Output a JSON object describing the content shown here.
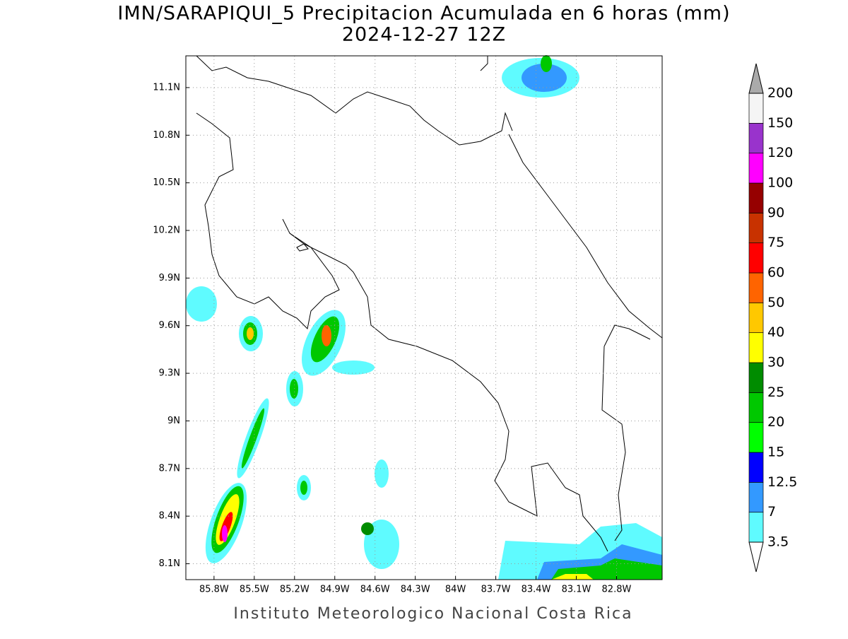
{
  "title": "IMN/SARAPIQUI_5 Precipitacion Acumulada en 6 horas (mm)",
  "subtitle": "2024-12-27 12Z",
  "footer": "Instituto Meteorologico Nacional Costa Rica",
  "map": {
    "lon_range": [
      -86.01,
      -82.46
    ],
    "lat_range": [
      8.0,
      11.3
    ],
    "lon_ticks": [
      {
        "value": -85.8,
        "label": "85.8W"
      },
      {
        "value": -85.5,
        "label": "85.5W"
      },
      {
        "value": -85.2,
        "label": "85.2W"
      },
      {
        "value": -84.9,
        "label": "84.9W"
      },
      {
        "value": -84.6,
        "label": "84.6W"
      },
      {
        "value": -84.3,
        "label": "84.3W"
      },
      {
        "value": -84.0,
        "label": "84W"
      },
      {
        "value": -83.7,
        "label": "83.7W"
      },
      {
        "value": -83.4,
        "label": "83.4W"
      },
      {
        "value": -83.1,
        "label": "83.1W"
      },
      {
        "value": -82.8,
        "label": "82.8W"
      }
    ],
    "lat_ticks": [
      {
        "value": 8.1,
        "label": "8.1N"
      },
      {
        "value": 8.4,
        "label": "8.4N"
      },
      {
        "value": 8.7,
        "label": "8.7N"
      },
      {
        "value": 9.0,
        "label": "9N"
      },
      {
        "value": 9.3,
        "label": "9.3N"
      },
      {
        "value": 9.6,
        "label": "9.6N"
      },
      {
        "value": 9.9,
        "label": "9.9N"
      },
      {
        "value": 10.2,
        "label": "10.2N"
      },
      {
        "value": 10.5,
        "label": "10.5N"
      },
      {
        "value": 10.8,
        "label": "10.8N"
      },
      {
        "value": 11.1,
        "label": "11.1N"
      }
    ]
  },
  "colorbar": {
    "levels": [
      3.5,
      7,
      12.5,
      15,
      20,
      25,
      30,
      40,
      50,
      60,
      75,
      90,
      100,
      120,
      150,
      200
    ],
    "colors": [
      "#5ffbff",
      "#3399ff",
      "#0000ff",
      "#00ff00",
      "#00c800",
      "#008c00",
      "#ffff00",
      "#ffc800",
      "#ff6400",
      "#ff0000",
      "#c83200",
      "#960000",
      "#ff00ff",
      "#9933cc",
      "#f5f5f5"
    ],
    "under_color": "#ffffff",
    "over_color": "#aaaaaa"
  }
}
